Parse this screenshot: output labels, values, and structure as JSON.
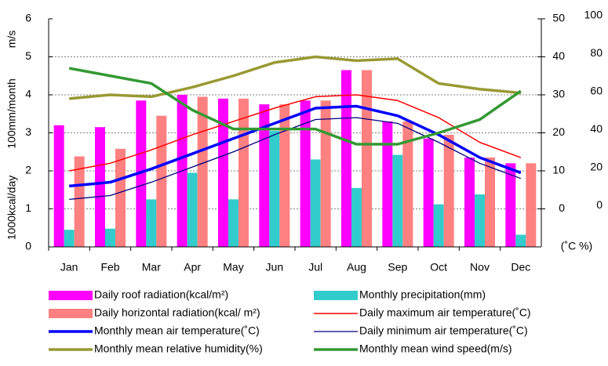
{
  "chart_data": {
    "type": "combo",
    "categories": [
      "Jan",
      "Feb",
      "Mar",
      "Apr",
      "May",
      "Jun",
      "Jul",
      "Aug",
      "Sep",
      "Oct",
      "Nov",
      "Dec"
    ],
    "y_labels": [
      "1000kcal/day",
      "100mm/month",
      "m/s"
    ],
    "y2label": "(˚C %)",
    "ylim": [
      0,
      6
    ],
    "yticks": [
      0,
      1,
      2,
      3,
      4,
      5,
      6
    ],
    "y2lim": [
      -10,
      50
    ],
    "y2ticks": [
      0,
      10,
      20,
      30,
      40,
      50
    ],
    "y3lim": [
      -20,
      100
    ],
    "y3ticks": [
      0,
      20,
      40,
      60,
      80,
      100
    ],
    "grid": true,
    "series": [
      {
        "name": "Daily roof radiation(kcal/m²)",
        "type": "bar",
        "color": "#ff00ff",
        "values": [
          3.2,
          3.15,
          3.85,
          4.0,
          3.9,
          3.75,
          3.85,
          4.65,
          3.3,
          2.85,
          2.35,
          2.2
        ]
      },
      {
        "name": "Monthly precipitation(mm)",
        "type": "bar",
        "color": "#33cccc",
        "values": [
          0.45,
          0.48,
          1.25,
          1.95,
          1.25,
          3.05,
          2.3,
          1.55,
          2.42,
          1.12,
          1.38,
          0.32
        ]
      },
      {
        "name": "Daily horizontal radiation(kcal/ m²)",
        "type": "bar",
        "color": "#ff8080",
        "values": [
          2.38,
          2.58,
          3.45,
          3.95,
          3.9,
          3.75,
          3.85,
          4.65,
          3.3,
          2.95,
          2.35,
          2.2
        ]
      },
      {
        "name": "Daily maximum air temperature(˚C)",
        "type": "line",
        "axis": "y2",
        "color": "#ff0000",
        "width": 1.5,
        "values": [
          10,
          12,
          15.5,
          19.5,
          23,
          26.5,
          29.5,
          30,
          28.5,
          24,
          17.5,
          13.5
        ]
      },
      {
        "name": "Monthly mean air temperature(˚C)",
        "type": "line",
        "axis": "y2",
        "color": "#0000ff",
        "width": 3.5,
        "values": [
          6,
          7,
          10.5,
          14.5,
          18.5,
          22.5,
          26.5,
          27,
          24.5,
          19.5,
          13.5,
          9.5
        ]
      },
      {
        "name": "Daily minimum air temperature(˚C)",
        "type": "line",
        "axis": "y2",
        "color": "#000080",
        "width": 1.3,
        "values": [
          2.5,
          3.5,
          7,
          11,
          15,
          19.5,
          23.5,
          24,
          22.5,
          17.5,
          12,
          8
        ]
      },
      {
        "name": "Monthly mean relative humidity(%)",
        "type": "line",
        "axis": "y3",
        "color": "#999933",
        "width": 3.5,
        "values": [
          58,
          60,
          59,
          64,
          70,
          77,
          80,
          78,
          79,
          66,
          63,
          61
        ]
      },
      {
        "name": "Monthly mean wind speed(m/s)",
        "type": "line",
        "color": "#339933",
        "width": 3.5,
        "values": [
          4.7,
          4.5,
          4.3,
          3.6,
          3.1,
          3.1,
          3.1,
          2.7,
          2.7,
          3.0,
          3.35,
          4.1
        ]
      }
    ]
  }
}
